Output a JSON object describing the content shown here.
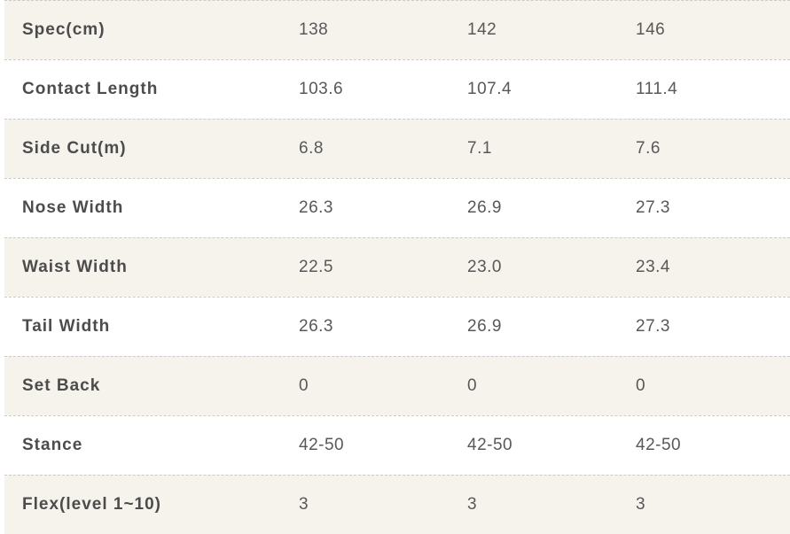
{
  "table": {
    "rows": [
      {
        "label": "Spec(cm)",
        "values": [
          "138",
          "142",
          "146"
        ]
      },
      {
        "label": "Contact Length",
        "values": [
          "103.6",
          "107.4",
          "111.4"
        ]
      },
      {
        "label": "Side Cut(m)",
        "values": [
          "6.8",
          "7.1",
          "7.6"
        ]
      },
      {
        "label": "Nose Width",
        "values": [
          "26.3",
          "26.9",
          "27.3"
        ]
      },
      {
        "label": "Waist Width",
        "values": [
          "22.5",
          "23.0",
          "23.4"
        ]
      },
      {
        "label": "Tail Width",
        "values": [
          "26.3",
          "26.9",
          "27.3"
        ]
      },
      {
        "label": "Set Back",
        "values": [
          "0",
          "0",
          "0"
        ]
      },
      {
        "label": "Stance",
        "values": [
          "42-50",
          "42-50",
          "42-50"
        ]
      },
      {
        "label": "Flex(level 1~10)",
        "values": [
          "3",
          "3",
          "3"
        ]
      }
    ]
  },
  "colors": {
    "shaded_row_bg": "#f5f3ec",
    "plain_row_bg": "#ffffff",
    "row_border": "#cbcbc7",
    "label_text": "#4c4c4c",
    "value_text": "#585858"
  }
}
